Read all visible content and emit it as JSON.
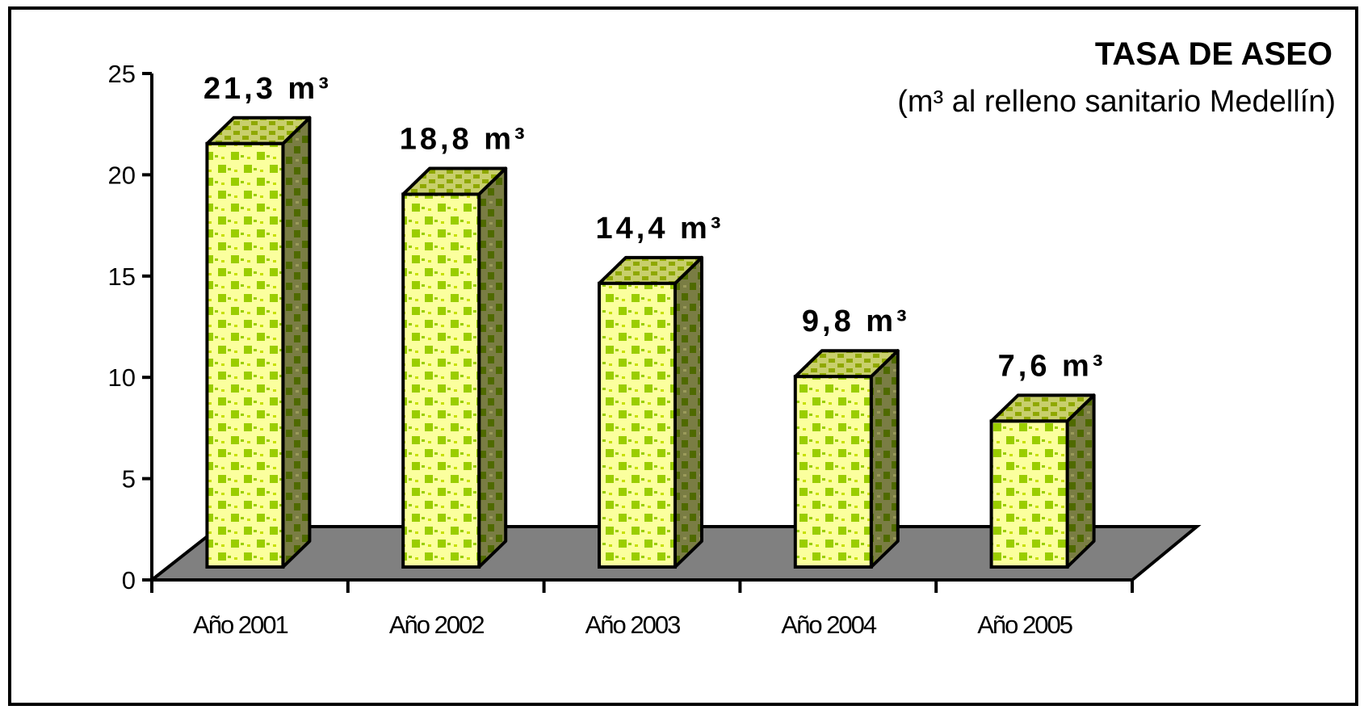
{
  "chart_data": {
    "type": "bar",
    "title": "TASA DE ASEO",
    "subtitle": "(m³ al relleno sanitario Medellín)",
    "categories": [
      "Año 2001",
      "Año 2002",
      "Año 2003",
      "Año 2004",
      "Año 2005"
    ],
    "values": [
      21.3,
      18.8,
      14.4,
      9.8,
      7.6
    ],
    "data_labels": [
      "21,3 m³",
      "18,8 m³",
      "14,4 m³",
      "9,8 m³",
      "7,6 m³"
    ],
    "y_ticks": [
      "0",
      "5",
      "10",
      "15",
      "20",
      "25"
    ],
    "ylim": [
      0,
      25
    ],
    "grid": false,
    "legend": "none",
    "style": "3d",
    "colors": {
      "bar_front_light": "#fbff9e",
      "bar_front_check": "#9acd00",
      "bar_side": "#7a7d44",
      "bar_side_check": "#4f6a00",
      "bar_top": "#c8cf6c",
      "floor": "#808080",
      "frame": "#000000"
    }
  }
}
